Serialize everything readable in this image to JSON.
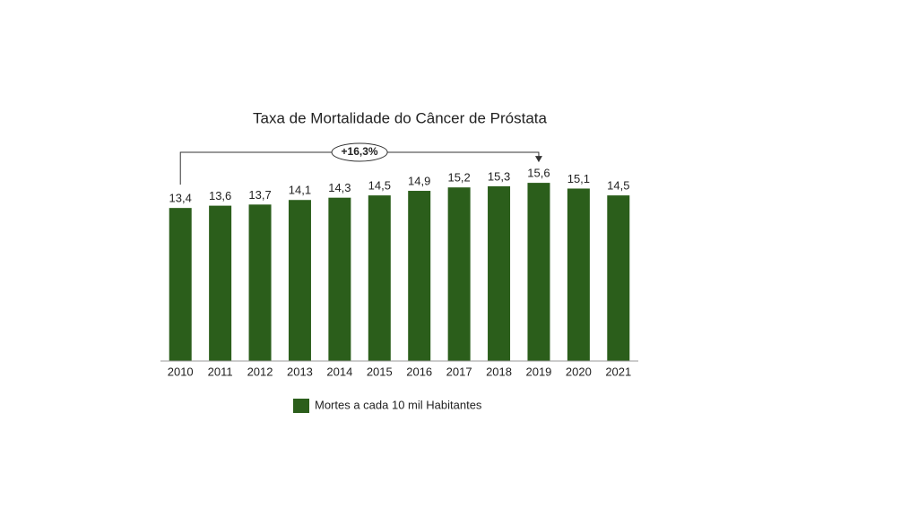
{
  "chart_data": {
    "type": "bar",
    "title": "Taxa de Mortalidade do Câncer de Próstata",
    "categories": [
      "2010",
      "2011",
      "2012",
      "2013",
      "2014",
      "2015",
      "2016",
      "2017",
      "2018",
      "2019",
      "2020",
      "2021"
    ],
    "series": [
      {
        "name": "Mortes a cada 10 mil Habitantes",
        "color": "#2b5e1b",
        "values": [
          13.4,
          13.6,
          13.7,
          14.1,
          14.3,
          14.5,
          14.9,
          15.2,
          15.3,
          15.6,
          15.1,
          14.5
        ],
        "value_labels": [
          "13,4",
          "13,6",
          "13,7",
          "14,1",
          "14,3",
          "14,5",
          "14,9",
          "15,2",
          "15,3",
          "15,6",
          "15,1",
          "14,5"
        ]
      }
    ],
    "ylim": [
      0,
      16
    ],
    "annotation": "+16,3%"
  }
}
